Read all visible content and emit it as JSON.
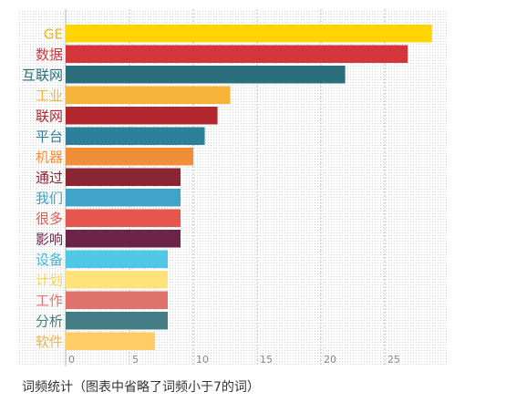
{
  "chart_data": {
    "type": "bar",
    "orientation": "horizontal",
    "categories": [
      "GE",
      "数据",
      "互联网",
      "工业",
      "联网",
      "平台",
      "机器",
      "通过",
      "我们",
      "很多",
      "影响",
      "设备",
      "计划",
      "工作",
      "分析",
      "软件"
    ],
    "values": [
      28.7,
      26.8,
      21.9,
      12.9,
      11.9,
      10.9,
      10.0,
      9.0,
      9.0,
      9.0,
      9.0,
      8.0,
      8.0,
      8.0,
      8.0,
      7.0
    ],
    "colors": [
      "#FFD400",
      "#D3353A",
      "#2A6F7B",
      "#F6B339",
      "#B0282D",
      "#2D8099",
      "#F08E3A",
      "#8A2533",
      "#40A3C8",
      "#E5564F",
      "#6B2347",
      "#4FC7E5",
      "#FFE37A",
      "#E0726C",
      "#447C86",
      "#FFCC66"
    ],
    "label_colors": [
      "#F0B800",
      "#D3353A",
      "#2A6F7B",
      "#F6B339",
      "#B0282D",
      "#2D8099",
      "#F08E3A",
      "#8A2533",
      "#40A3C8",
      "#E5564F",
      "#6B2347",
      "#3FB8DC",
      "#F6D35C",
      "#E0726C",
      "#447C86",
      "#F0B44A"
    ],
    "xlim": [
      0,
      30
    ],
    "xticks": [
      0,
      5,
      10,
      15,
      20,
      25
    ],
    "grid": "dotted",
    "legend": "none"
  },
  "caption": "词频统计（图表中省略了词频小于7的词）"
}
